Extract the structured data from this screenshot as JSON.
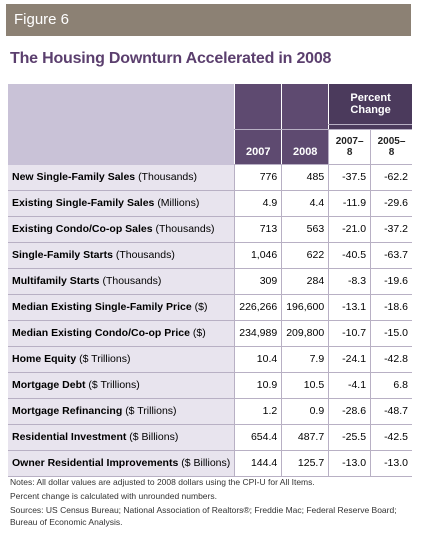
{
  "header": {
    "figure": "Figure 6",
    "title": "The Housing Downturn Accelerated in 2008"
  },
  "table": {
    "group_header": "Percent Change",
    "columns": [
      "2007",
      "2008",
      "2007–8",
      "2005–8"
    ],
    "rows": [
      {
        "label": "New Single-Family Sales",
        "unit": "(Thousands)",
        "cells": [
          "776",
          "485",
          "-37.5",
          "-62.2"
        ]
      },
      {
        "label": "Existing Single-Family Sales",
        "unit": "(Millions)",
        "cells": [
          "4.9",
          "4.4",
          "-11.9",
          "-29.6"
        ]
      },
      {
        "label": "Existing Condo/Co-op Sales",
        "unit": "(Thousands)",
        "cells": [
          "713",
          "563",
          "-21.0",
          "-37.2"
        ]
      },
      {
        "label": "Single-Family Starts",
        "unit": "(Thousands)",
        "cells": [
          "1,046",
          "622",
          "-40.5",
          "-63.7"
        ]
      },
      {
        "label": "Multifamily Starts",
        "unit": "(Thousands)",
        "cells": [
          "309",
          "284",
          "-8.3",
          "-19.6"
        ]
      },
      {
        "label": "Median Existing Single-Family Price",
        "unit": "($)",
        "cells": [
          "226,266",
          "196,600",
          "-13.1",
          "-18.6"
        ]
      },
      {
        "label": "Median Existing Condo/Co-op Price",
        "unit": "($)",
        "cells": [
          "234,989",
          "209,800",
          "-10.7",
          "-15.0"
        ]
      },
      {
        "label": "Home Equity",
        "unit": "($ Trillions)",
        "cells": [
          "10.4",
          "7.9",
          "-24.1",
          "-42.8"
        ]
      },
      {
        "label": "Mortgage Debt",
        "unit": "($ Trillions)",
        "cells": [
          "10.9",
          "10.5",
          "-4.1",
          "6.8"
        ]
      },
      {
        "label": "Mortgage Refinancing",
        "unit": "($ Trillions)",
        "cells": [
          "1.2",
          "0.9",
          "-28.6",
          "-48.7"
        ]
      },
      {
        "label": "Residential Investment",
        "unit": "($ Billions)",
        "cells": [
          "654.4",
          "487.7",
          "-25.5",
          "-42.5"
        ]
      },
      {
        "label": "Owner Residential Improvements",
        "unit": "($ Billions)",
        "cells": [
          "144.4",
          "125.7",
          "-13.0",
          "-13.0"
        ]
      }
    ]
  },
  "notes": [
    "Notes: All dollar values are adjusted to 2008 dollars using the CPI-U for All Items.",
    "Percent change is calculated with unrounded numbers.",
    "Sources: US Census Bureau; National Association of Realtors®; Freddie Mac; Federal Reserve Board; Bureau of Economic Analysis."
  ]
}
